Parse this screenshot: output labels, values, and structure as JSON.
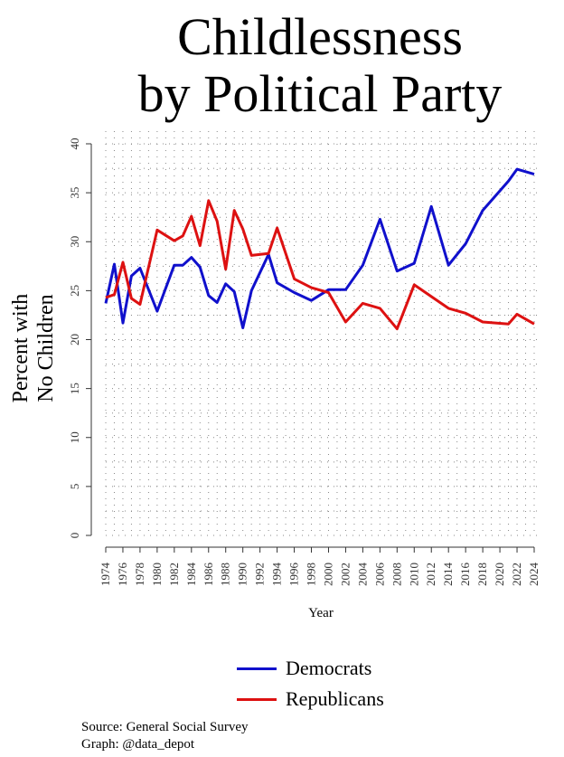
{
  "title_line1": "Childlessness",
  "title_line2": "by Political Party",
  "chart_data": {
    "type": "line",
    "title": "Childlessness by Political Party",
    "xlabel": "Year",
    "ylabel_line1": "Percent with",
    "ylabel_line2": "No Children",
    "ylim": [
      0,
      40
    ],
    "yticks": [
      "0",
      "5",
      "10",
      "15",
      "20",
      "25",
      "30",
      "35",
      "40"
    ],
    "xticks": [
      "1974",
      "1976",
      "1978",
      "1980",
      "1982",
      "1984",
      "1986",
      "1988",
      "1990",
      "1992",
      "1994",
      "1996",
      "1998",
      "2000",
      "2002",
      "2004",
      "2006",
      "2008",
      "2010",
      "2012",
      "2014",
      "2016",
      "2018",
      "2020",
      "2022",
      "2024"
    ],
    "xlim": [
      1974,
      2024
    ],
    "grid": true,
    "legend_position": "bottom",
    "series": [
      {
        "name": "Democrats",
        "color": "#1010cc",
        "x": [
          1974,
          1975,
          1976,
          1977,
          1978,
          1980,
          1982,
          1983,
          1984,
          1985,
          1986,
          1987,
          1988,
          1989,
          1990,
          1991,
          1993,
          1994,
          1996,
          1998,
          2000,
          2002,
          2004,
          2006,
          2008,
          2010,
          2012,
          2014,
          2016,
          2018,
          2021,
          2022,
          2024
        ],
        "y": [
          23.7,
          27.7,
          21.7,
          26.5,
          27.3,
          22.9,
          27.6,
          27.6,
          28.4,
          27.4,
          24.5,
          23.8,
          25.7,
          24.9,
          21.2,
          25,
          28.7,
          25.8,
          24.8,
          24,
          25.1,
          25.1,
          27.6,
          32.3,
          27,
          27.8,
          33.6,
          27.6,
          29.8,
          33.2,
          36.2,
          37.4,
          36.9
        ]
      },
      {
        "name": "Republicans",
        "color": "#dd1111",
        "x": [
          1974,
          1975,
          1976,
          1977,
          1978,
          1980,
          1982,
          1983,
          1984,
          1985,
          1986,
          1987,
          1988,
          1989,
          1990,
          1991,
          1993,
          1994,
          1996,
          1998,
          2000,
          2002,
          2004,
          2006,
          2008,
          2010,
          2012,
          2014,
          2016,
          2018,
          2021,
          2022,
          2024
        ],
        "y": [
          24.3,
          24.6,
          27.9,
          24.2,
          23.6,
          31.2,
          30.1,
          30.6,
          32.6,
          29.6,
          34.2,
          32.1,
          27.2,
          33.2,
          31.3,
          28.6,
          28.8,
          31.4,
          26.2,
          25.3,
          24.8,
          21.8,
          23.7,
          23.2,
          21.1,
          25.6,
          24.4,
          23.2,
          22.7,
          21.8,
          21.6,
          22.6,
          21.6
        ]
      }
    ]
  },
  "legend": {
    "dem": "Democrats",
    "rep": "Republicans"
  },
  "source_line1": "Source: General Social Survey",
  "source_line2": "Graph: @data_depot"
}
